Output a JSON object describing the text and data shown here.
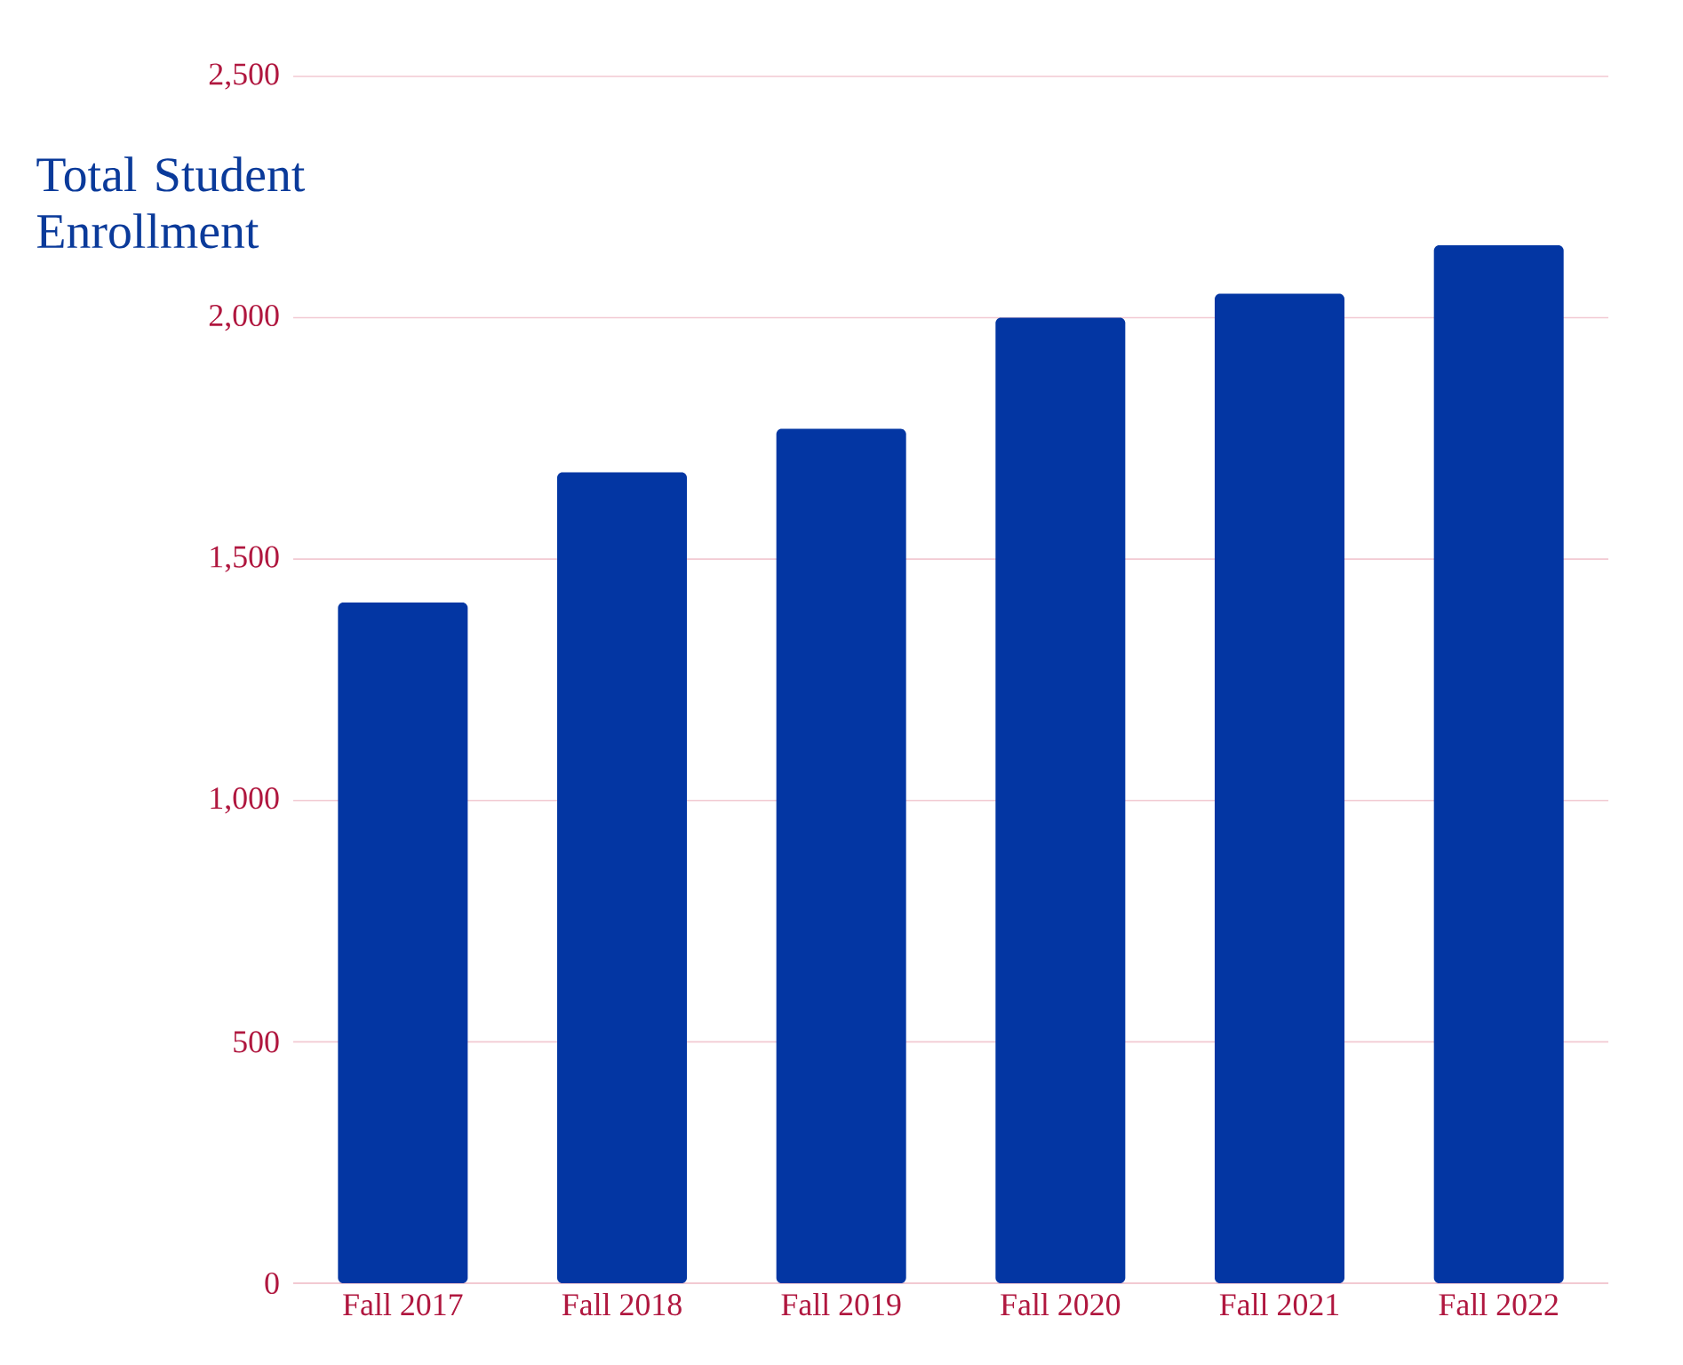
{
  "chart_data": {
    "type": "bar",
    "title": "Total Student Enrollment",
    "categories": [
      "Fall 2017",
      "Fall 2018",
      "Fall 2019",
      "Fall 2020",
      "Fall 2021",
      "Fall 2022"
    ],
    "values": [
      1410,
      1680,
      1770,
      2000,
      2050,
      2150
    ],
    "color": "#0336a3",
    "ylim": [
      0,
      2500
    ],
    "yticks": [
      0,
      500,
      {
        "value": 1000,
        "label": "1,000"
      },
      {
        "value": 1500,
        "label": "1,500"
      },
      {
        "value": 2000,
        "label": "2,000"
      },
      {
        "value": 2500,
        "label": "2,500"
      }
    ],
    "grid": "y"
  }
}
